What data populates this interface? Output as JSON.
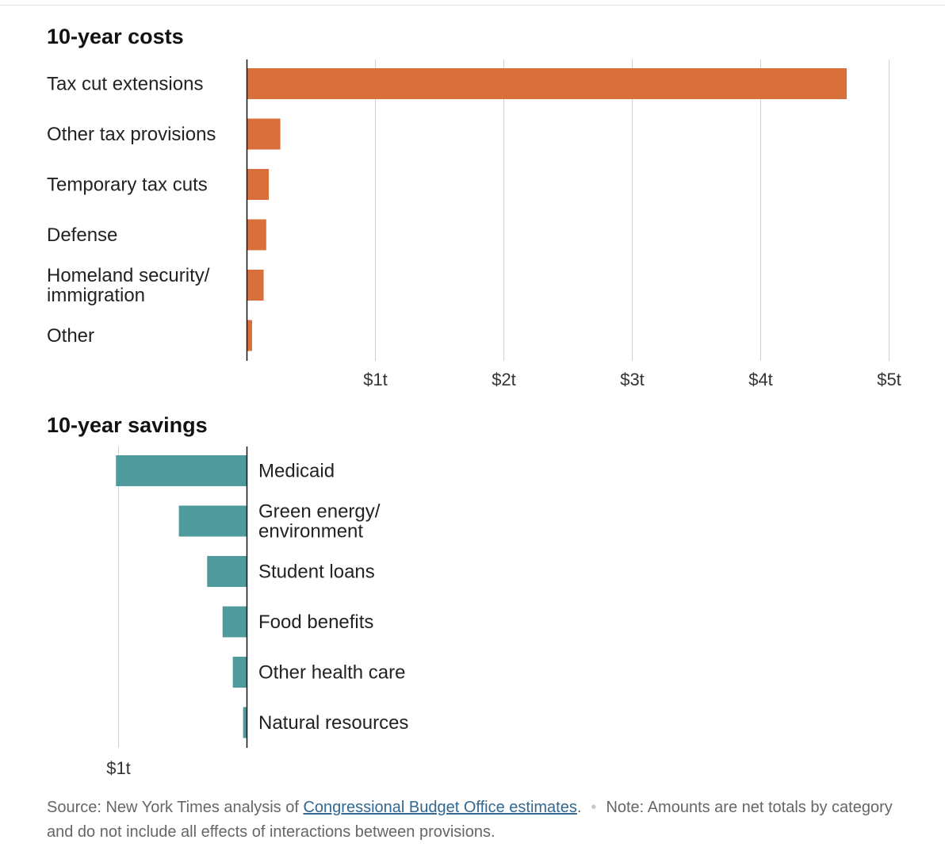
{
  "chart_data": [
    {
      "type": "bar",
      "orientation": "horizontal",
      "title": "10-year costs",
      "categories": [
        [
          "Tax cut extensions"
        ],
        [
          "Other tax provisions"
        ],
        [
          "Temporary tax cuts"
        ],
        [
          "Defense"
        ],
        [
          "Homeland security/",
          "immigration"
        ],
        [
          "Other"
        ]
      ],
      "values": [
        4.67,
        0.26,
        0.17,
        0.15,
        0.13,
        0.04
      ],
      "unit": "trillion dollars",
      "xlim": [
        0,
        5
      ],
      "x_ticks": [
        1,
        2,
        3,
        4,
        5
      ],
      "x_tick_labels": [
        "$1t",
        "$2t",
        "$3t",
        "$4t",
        "$5t"
      ],
      "grid": true,
      "color": "#d9703b"
    },
    {
      "type": "bar",
      "orientation": "horizontal",
      "direction": "leftward",
      "title": "10-year savings",
      "categories": [
        [
          "Medicaid"
        ],
        [
          "Green energy/",
          "environment"
        ],
        [
          "Student loans"
        ],
        [
          "Food benefits"
        ],
        [
          "Other health care"
        ],
        [
          "Natural resources"
        ]
      ],
      "values": [
        1.02,
        0.53,
        0.31,
        0.19,
        0.11,
        0.03
      ],
      "unit": "trillion dollars",
      "xlim": [
        0,
        1
      ],
      "x_ticks": [
        1
      ],
      "x_tick_labels": [
        "$1t"
      ],
      "grid": true,
      "color": "#4e9a9d"
    }
  ],
  "footer": {
    "source_prefix": "Source: New York Times analysis of ",
    "source_link": "Congressional Budget Office estimates",
    "source_suffix": ".",
    "note": "Note: Amounts are net totals by category and do not include all effects of interactions between provisions."
  }
}
